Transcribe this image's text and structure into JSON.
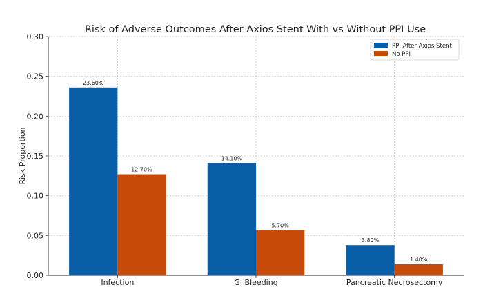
{
  "chart_data": {
    "type": "bar",
    "title": "Risk of Adverse Outcomes After Axios Stent With vs Without PPI Use",
    "xlabel": "",
    "ylabel": "Risk Proportion",
    "ylim": [
      0,
      0.3
    ],
    "yticks": [
      "0.00",
      "0.05",
      "0.10",
      "0.15",
      "0.20",
      "0.25",
      "0.30"
    ],
    "categories": [
      "Infection",
      "GI Bleeding",
      "Pancreatic Necrosectomy"
    ],
    "series": [
      {
        "name": "PPI After Axios Stent",
        "color": "#0a5ea8",
        "values": [
          0.236,
          0.141,
          0.038
        ],
        "labels": [
          "23.60%",
          "14.10%",
          "3.80%"
        ]
      },
      {
        "name": "No PPI",
        "color": "#c84a08",
        "values": [
          0.127,
          0.057,
          0.014
        ],
        "labels": [
          "12.70%",
          "5.70%",
          "1.40%"
        ]
      }
    ],
    "grid": true,
    "legend_position": "top-right"
  }
}
